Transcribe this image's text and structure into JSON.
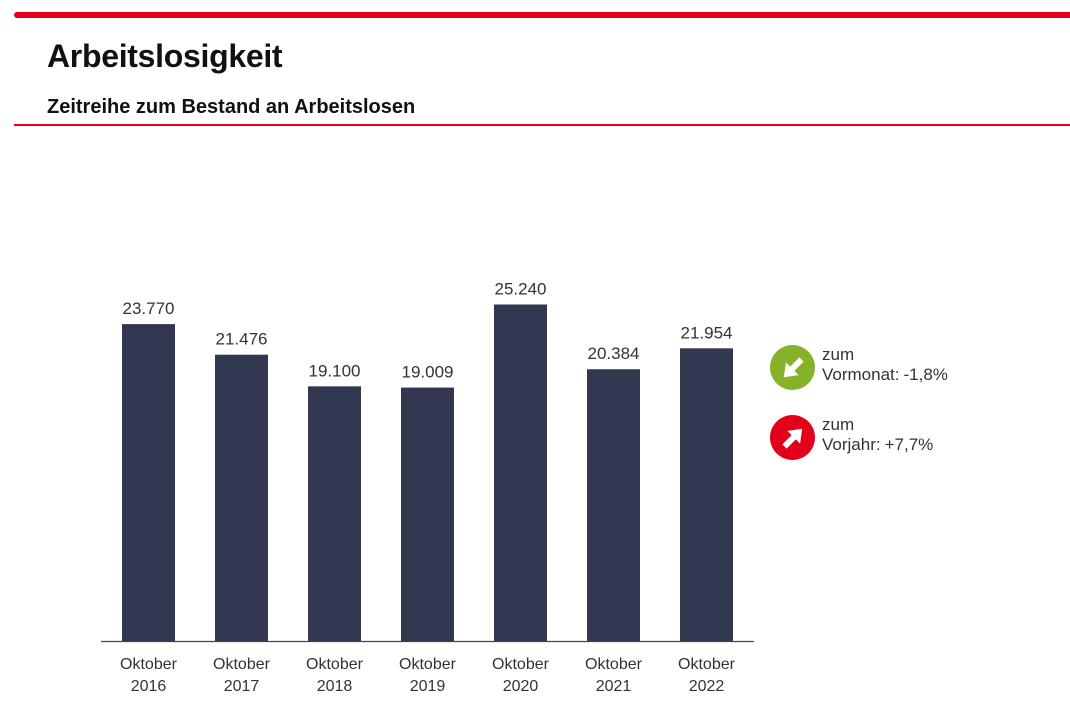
{
  "header": {
    "title": "Arbeitslosigkeit",
    "subtitle": "Zeitreihe zum Bestand an Arbeitslosen"
  },
  "colors": {
    "accent_red": "#e2001a",
    "bar": "#30374e",
    "trend_down": "#84b32a",
    "trend_up": "#e2001a"
  },
  "chart_data": {
    "type": "bar",
    "title": "Zeitreihe zum Bestand an Arbeitslosen",
    "xlabel": "",
    "ylabel": "",
    "ylim": [
      0,
      25240
    ],
    "grid": false,
    "categories": [
      "Oktober 2016",
      "Oktober 2017",
      "Oktober 2018",
      "Oktober 2019",
      "Oktober 2020",
      "Oktober 2021",
      "Oktober 2022"
    ],
    "category_lines": [
      [
        "Oktober",
        "2016"
      ],
      [
        "Oktober",
        "2017"
      ],
      [
        "Oktober",
        "2018"
      ],
      [
        "Oktober",
        "2019"
      ],
      [
        "Oktober",
        "2020"
      ],
      [
        "Oktober",
        "2021"
      ],
      [
        "Oktober",
        "2022"
      ]
    ],
    "values": [
      23770,
      21476,
      19100,
      19009,
      25240,
      20384,
      21954
    ],
    "value_labels": [
      "23.770",
      "21.476",
      "19.100",
      "19.009",
      "25.240",
      "20.384",
      "21.954"
    ]
  },
  "trends": [
    {
      "direction": "down",
      "icon": "arrow-down-right-icon",
      "line1": "zum",
      "label": "Vormonat:",
      "value": "-1,8%"
    },
    {
      "direction": "up",
      "icon": "arrow-up-right-icon",
      "line1": "zum",
      "label": "Vorjahr:",
      "value": "+7,7%"
    }
  ]
}
